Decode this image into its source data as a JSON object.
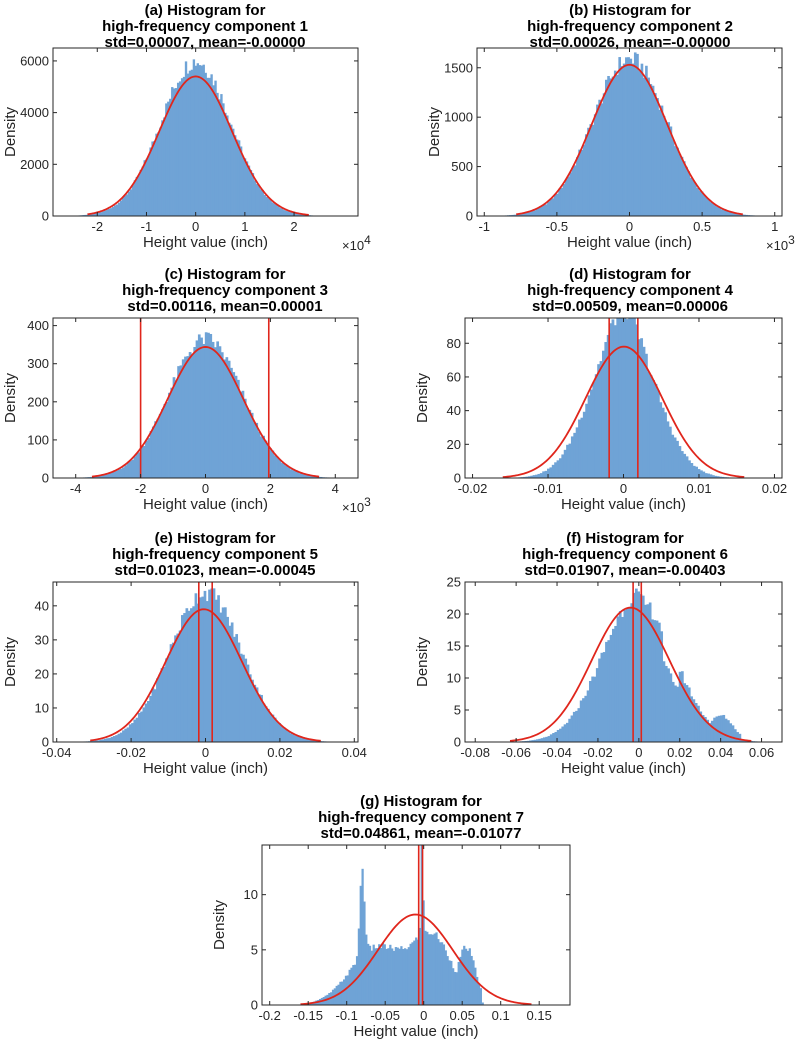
{
  "figure": {
    "bar_color": "#6fa3d6",
    "curve_color": "#e0261c"
  },
  "chart_data": [
    {
      "type": "bar",
      "panel": "(a)",
      "title": [
        "(a) Histogram for",
        "high-frequency component 1",
        "std=0.00007, mean=-0.00000"
      ],
      "xlabel": "Height value (inch)",
      "ylabel": "Density",
      "xlim": [
        -2.9,
        3.3
      ],
      "ylim": [
        0,
        6500
      ],
      "xticks": [
        -2,
        -1,
        0,
        1,
        2
      ],
      "xtick_labels": [
        "-2",
        "-1",
        "0",
        "1",
        "2"
      ],
      "yticks": [
        0,
        2000,
        4000,
        6000
      ],
      "ytick_labels": [
        "0",
        "2000",
        "4000",
        "6000"
      ],
      "x_multiplier_base": "×10",
      "x_multiplier_exp": "4",
      "hist_sd": 0.71,
      "hist_peak": 6000,
      "hist_bins": 140,
      "hist_range": [
        -2.7,
        2.9
      ],
      "fit_mu": 0.0,
      "fit_sd": 0.74,
      "fit_peak": 5400,
      "fit_range": [
        -2.2,
        2.3
      ],
      "vlines": [],
      "series": [
        {
          "name": "Histogram"
        },
        {
          "name": "Normal fit"
        }
      ]
    },
    {
      "type": "bar",
      "panel": "(b)",
      "title": [
        "(b) Histogram for",
        "high-frequency component 2",
        "std=0.00026, mean=-0.00000"
      ],
      "xlabel": "Height value (inch)",
      "ylabel": "Density",
      "xlim": [
        -1.05,
        1.05
      ],
      "ylim": [
        0,
        1700
      ],
      "xticks": [
        -1,
        -0.5,
        0,
        0.5,
        1
      ],
      "xtick_labels": [
        "-1",
        "-0.5",
        "0",
        "0.5",
        "1"
      ],
      "yticks": [
        0,
        500,
        1000,
        1500
      ],
      "ytick_labels": [
        "0",
        "500",
        "1000",
        "1500"
      ],
      "x_multiplier_base": "×10",
      "x_multiplier_exp": "3",
      "hist_sd": 0.255,
      "hist_peak": 1590,
      "hist_bins": 120,
      "hist_range": [
        -0.92,
        0.92
      ],
      "fit_mu": 0.0,
      "fit_sd": 0.26,
      "fit_peak": 1530,
      "fit_range": [
        -0.78,
        0.78
      ],
      "vlines": [],
      "series": [
        {
          "name": "Histogram"
        },
        {
          "name": "Normal fit"
        }
      ]
    },
    {
      "type": "bar",
      "panel": "(c)",
      "title": [
        "(c) Histogram for",
        "high-frequency component 3",
        "std=0.00116, mean=0.00001"
      ],
      "xlabel": "Height value (inch)",
      "ylabel": "Density",
      "xlim": [
        -4.7,
        4.7
      ],
      "ylim": [
        0,
        420
      ],
      "xticks": [
        -4,
        -2,
        0,
        2,
        4
      ],
      "xtick_labels": [
        "-4",
        "-2",
        "0",
        "2",
        "4"
      ],
      "yticks": [
        0,
        100,
        200,
        300,
        400
      ],
      "ytick_labels": [
        "0",
        "100",
        "200",
        "300",
        "400"
      ],
      "x_multiplier_base": "×10",
      "x_multiplier_exp": "3",
      "hist_sd": 1.13,
      "hist_peak": 365,
      "hist_bins": 120,
      "hist_range": [
        -4.2,
        4.3
      ],
      "fit_mu": 0.0,
      "fit_sd": 1.16,
      "fit_peak": 344,
      "fit_range": [
        -3.5,
        3.5
      ],
      "vlines": [
        -2.0,
        1.95
      ],
      "series": [
        {
          "name": "Histogram"
        },
        {
          "name": "Normal fit"
        }
      ]
    },
    {
      "type": "bar",
      "panel": "(d)",
      "title": [
        "(d) Histogram for",
        "high-frequency component 4",
        "std=0.00509, mean=0.00006"
      ],
      "xlabel": "Height value (inch)",
      "ylabel": "Density",
      "xlim": [
        -0.021,
        0.021
      ],
      "ylim": [
        0,
        95
      ],
      "xticks": [
        -0.02,
        -0.01,
        0,
        0.01,
        0.02
      ],
      "xtick_labels": [
        "-0.02",
        "-0.01",
        "0",
        "0.01",
        "0.02"
      ],
      "yticks": [
        0,
        20,
        40,
        60,
        80
      ],
      "ytick_labels": [
        "0",
        "20",
        "40",
        "60",
        "80"
      ],
      "hist_sd": 0.0042,
      "hist_peak": 90,
      "hist_bins": 120,
      "hist_range": [
        -0.019,
        0.019
      ],
      "fit_mu": 6e-05,
      "fit_sd": 0.00509,
      "fit_peak": 78,
      "fit_range": [
        -0.016,
        0.016
      ],
      "vlines": [
        -0.0019,
        0.0019
      ],
      "series": [
        {
          "name": "Histogram"
        },
        {
          "name": "Normal fit"
        }
      ]
    },
    {
      "type": "bar",
      "panel": "(e)",
      "title": [
        "(e) Histogram for",
        "high-frequency component 5",
        "std=0.01023, mean=-0.00045"
      ],
      "xlabel": "Height value (inch)",
      "ylabel": "Density",
      "xlim": [
        -0.041,
        0.041
      ],
      "ylim": [
        0,
        47
      ],
      "xticks": [
        -0.04,
        -0.02,
        0,
        0.02,
        0.04
      ],
      "xtick_labels": [
        "-0.04",
        "-0.02",
        "0",
        "0.02",
        "0.04"
      ],
      "yticks": [
        0,
        10,
        20,
        30,
        40
      ],
      "ytick_labels": [
        "0",
        "10",
        "20",
        "30",
        "40"
      ],
      "hist_sd": 0.0097,
      "hist_peak": 44,
      "hist_bins": 110,
      "hist_range": [
        -0.034,
        0.033
      ],
      "fit_mu": -0.00045,
      "fit_sd": 0.01023,
      "fit_peak": 39,
      "fit_range": [
        -0.031,
        0.031
      ],
      "vlines": [
        -0.0018,
        0.0018
      ],
      "series": [
        {
          "name": "Histogram"
        },
        {
          "name": "Normal fit"
        }
      ]
    },
    {
      "type": "bar",
      "panel": "(f)",
      "title": [
        "(f) Histogram for",
        "high-frequency component 6",
        "std=0.01907, mean=-0.00403"
      ],
      "xlabel": "Height value (inch)",
      "ylabel": "Density",
      "xlim": [
        -0.085,
        0.07
      ],
      "ylim": [
        0,
        25
      ],
      "xticks": [
        -0.08,
        -0.06,
        -0.04,
        -0.02,
        0,
        0.02,
        0.04,
        0.06
      ],
      "xtick_labels": [
        "-0.08",
        "-0.06",
        "-0.04",
        "-0.02",
        "0",
        "0.02",
        "0.04",
        "0.06"
      ],
      "yticks": [
        0,
        5,
        10,
        15,
        20,
        25
      ],
      "ytick_labels": [
        "0",
        "5",
        "10",
        "15",
        "20",
        "25"
      ],
      "hist_sd": 0.0175,
      "hist_peak": 23,
      "hist_bins": 120,
      "hist_range": [
        -0.075,
        0.06
      ],
      "fit_mu": -0.00403,
      "fit_sd": 0.01907,
      "fit_peak": 21,
      "fit_range": [
        -0.063,
        0.055
      ],
      "vlines": [
        -0.0028,
        0.0012
      ],
      "series": [
        {
          "name": "Histogram"
        },
        {
          "name": "Normal fit"
        }
      ]
    },
    {
      "type": "bar",
      "panel": "(g)",
      "title": [
        "(g) Histogram for",
        "high-frequency component 7",
        "std=0.04861, mean=-0.01077"
      ],
      "xlabel": "Height value (inch)",
      "ylabel": "Density",
      "xlim": [
        -0.21,
        0.19
      ],
      "ylim": [
        0,
        14.5
      ],
      "xticks": [
        -0.2,
        -0.15,
        -0.1,
        -0.05,
        0,
        0.05,
        0.1,
        0.15
      ],
      "xtick_labels": [
        "-0.2",
        "-0.15",
        "-0.1",
        "-0.05",
        "0",
        "0.05",
        "0.1",
        "0.15"
      ],
      "yticks": [
        0,
        5,
        10
      ],
      "ytick_labels": [
        "0",
        "5",
        "10"
      ],
      "hist_sd": 0.045,
      "hist_peak": 9.5,
      "hist_bins": 100,
      "hist_range": [
        -0.16,
        0.08
      ],
      "fit_mu": -0.01077,
      "fit_sd": 0.04861,
      "fit_peak": 8.2,
      "fit_range": [
        -0.16,
        0.14
      ],
      "vlines": [
        -0.0065,
        -0.0015
      ],
      "series": [
        {
          "name": "Histogram"
        },
        {
          "name": "Normal fit"
        }
      ]
    }
  ]
}
